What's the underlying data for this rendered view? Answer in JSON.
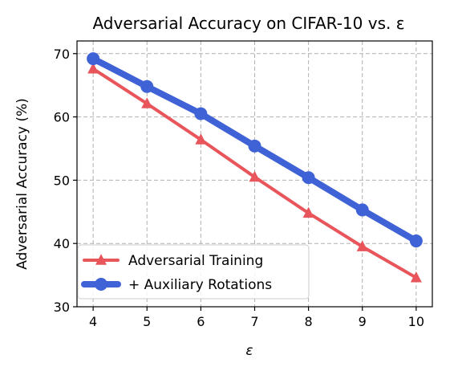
{
  "chart_data": {
    "type": "line",
    "title": "Adversarial Accuracy on CIFAR-10 vs. ε",
    "xlabel": "ε",
    "ylabel": "Adversarial Accuracy (%)",
    "x": [
      4,
      5,
      6,
      7,
      8,
      9,
      10
    ],
    "xlim": [
      3.7,
      10.3
    ],
    "ylim": [
      30,
      72
    ],
    "xticks": [
      "4",
      "5",
      "6",
      "7",
      "8",
      "9",
      "10"
    ],
    "yticks": [
      "30",
      "40",
      "50",
      "60",
      "70"
    ],
    "grid": true,
    "legend_position": "lower-left",
    "series": [
      {
        "name": "Adversarial Training",
        "values": [
          67.6,
          62.1,
          56.4,
          50.5,
          44.8,
          39.5,
          34.6
        ],
        "color": "#e8555a",
        "marker": "triangle"
      },
      {
        "name": "+ Auxiliary Rotations",
        "values": [
          69.2,
          64.8,
          60.5,
          55.4,
          50.4,
          45.3,
          40.4
        ],
        "color": "#3f62d6",
        "marker": "circle"
      }
    ]
  }
}
